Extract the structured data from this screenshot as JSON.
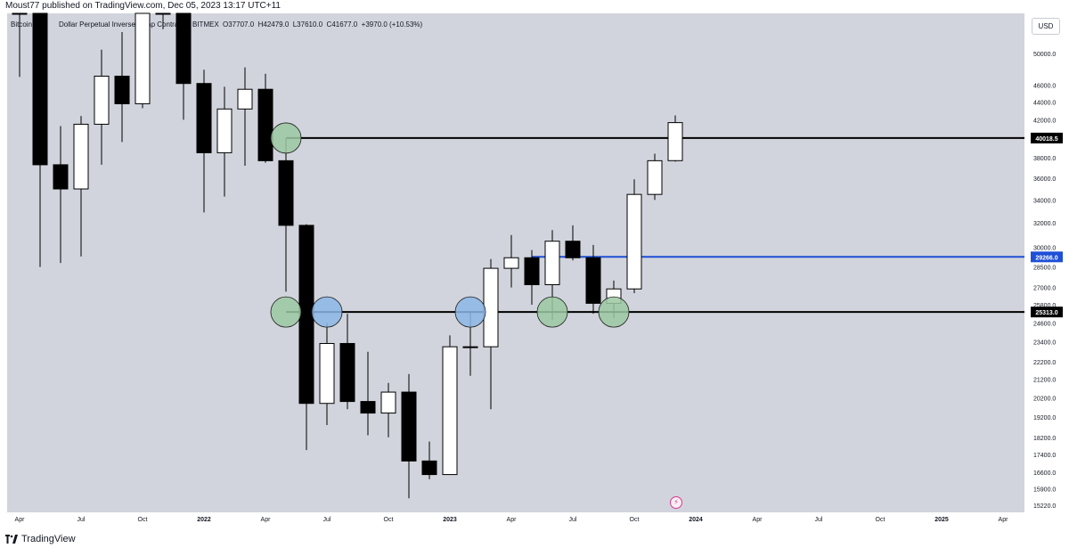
{
  "header": {
    "published": "Moust77 published on TradingView.com, Dec 05, 2023 13:17 UTC+11",
    "symbol": "Bitcoin",
    "symbol_rest": "Dollar Perpetual Inverse Swap Contract,",
    "exchange": "BITMEX",
    "ohlc": "O37707.0  H42479.0  L37610.0  C41677.0  +3970.0 (+10.53%)"
  },
  "footer": {
    "brand": "TradingView",
    "brand_icon": "tradingview-logo-icon",
    "event_icon": "lightning-icon"
  },
  "colors": {
    "plot_bg": "#d1d4dc",
    "candle_up": "#ffffff",
    "candle_down": "#000000",
    "wick": "#000000",
    "level_black": "#000000",
    "level_blue": "#1e4fd6",
    "circle_green": "#9bc8a2",
    "circle_blue": "#8cb6e6"
  },
  "chart_data": {
    "type": "candlestick",
    "interval": "monthly",
    "currency_button": "USD",
    "y_scale": "log",
    "y_ticks": [
      15220.0,
      15900.0,
      16600.0,
      17400.0,
      18200.0,
      19200.0,
      20200.0,
      21200.0,
      22200.0,
      23400.0,
      24600.0,
      25800.0,
      27000.0,
      28500.0,
      30000.0,
      32000.0,
      34000.0,
      36000.0,
      38000.0,
      40000.0,
      42000.0,
      44000.0,
      46000.0,
      50000.0
    ],
    "x_ticks": [
      {
        "date": "2021-04",
        "label": "Apr",
        "bold": false
      },
      {
        "date": "2021-07",
        "label": "Jul",
        "bold": false
      },
      {
        "date": "2021-10",
        "label": "Oct",
        "bold": false
      },
      {
        "date": "2022-01",
        "label": "2022",
        "bold": true
      },
      {
        "date": "2022-04",
        "label": "Apr",
        "bold": false
      },
      {
        "date": "2022-07",
        "label": "Jul",
        "bold": false
      },
      {
        "date": "2022-10",
        "label": "Oct",
        "bold": false
      },
      {
        "date": "2023-01",
        "label": "2023",
        "bold": true
      },
      {
        "date": "2023-04",
        "label": "Apr",
        "bold": false
      },
      {
        "date": "2023-07",
        "label": "Jul",
        "bold": false
      },
      {
        "date": "2023-10",
        "label": "Oct",
        "bold": false
      },
      {
        "date": "2024-01",
        "label": "2024",
        "bold": true
      },
      {
        "date": "2024-04",
        "label": "Apr",
        "bold": false
      },
      {
        "date": "2024-07",
        "label": "Jul",
        "bold": false
      },
      {
        "date": "2024-10",
        "label": "Oct",
        "bold": false
      },
      {
        "date": "2025-01",
        "label": "2025",
        "bold": true
      },
      {
        "date": "2025-04",
        "label": "Apr",
        "bold": false
      }
    ],
    "candles": [
      {
        "date": "2021-04",
        "open": 58800,
        "high": 64800,
        "low": 47000,
        "close": 57700
      },
      {
        "date": "2021-05",
        "open": 57700,
        "high": 59500,
        "low": 28500,
        "close": 37300
      },
      {
        "date": "2021-06",
        "open": 37300,
        "high": 41300,
        "low": 28800,
        "close": 35000
      },
      {
        "date": "2021-07",
        "open": 35000,
        "high": 42400,
        "low": 29300,
        "close": 41500
      },
      {
        "date": "2021-08",
        "open": 41500,
        "high": 50500,
        "low": 37300,
        "close": 47100
      },
      {
        "date": "2021-09",
        "open": 47100,
        "high": 52900,
        "low": 39600,
        "close": 43800
      },
      {
        "date": "2021-10",
        "open": 43800,
        "high": 67000,
        "low": 43300,
        "close": 61300
      },
      {
        "date": "2021-11",
        "open": 61300,
        "high": 69000,
        "low": 53300,
        "close": 57000
      },
      {
        "date": "2021-12",
        "open": 57000,
        "high": 59100,
        "low": 42000,
        "close": 46200
      },
      {
        "date": "2022-01",
        "open": 46200,
        "high": 47900,
        "low": 32900,
        "close": 38500
      },
      {
        "date": "2022-02",
        "open": 38500,
        "high": 45800,
        "low": 34300,
        "close": 43200
      },
      {
        "date": "2022-03",
        "open": 43200,
        "high": 48200,
        "low": 37200,
        "close": 45500
      },
      {
        "date": "2022-04",
        "open": 45500,
        "high": 47400,
        "low": 37500,
        "close": 37700
      },
      {
        "date": "2022-05",
        "open": 37700,
        "high": 40000,
        "low": 26700,
        "close": 31800
      },
      {
        "date": "2022-06",
        "open": 31800,
        "high": 31900,
        "low": 17600,
        "close": 19900
      },
      {
        "date": "2022-07",
        "open": 19900,
        "high": 24600,
        "low": 18800,
        "close": 23300
      },
      {
        "date": "2022-08",
        "open": 23300,
        "high": 25200,
        "low": 19600,
        "close": 20000
      },
      {
        "date": "2022-09",
        "open": 20000,
        "high": 22800,
        "low": 18300,
        "close": 19400
      },
      {
        "date": "2022-10",
        "open": 19400,
        "high": 21000,
        "low": 18200,
        "close": 20500
      },
      {
        "date": "2022-11",
        "open": 20500,
        "high": 21500,
        "low": 15500,
        "close": 17100
      },
      {
        "date": "2022-12",
        "open": 17100,
        "high": 18000,
        "low": 16300,
        "close": 16500
      },
      {
        "date": "2023-01",
        "open": 16500,
        "high": 23800,
        "low": 16500,
        "close": 23100
      },
      {
        "date": "2023-02",
        "open": 23100,
        "high": 25300,
        "low": 21400,
        "close": 23100
      },
      {
        "date": "2023-03",
        "open": 23100,
        "high": 29100,
        "low": 19600,
        "close": 28400
      },
      {
        "date": "2023-04",
        "open": 28400,
        "high": 31000,
        "low": 27000,
        "close": 29200
      },
      {
        "date": "2023-05",
        "open": 29200,
        "high": 29800,
        "low": 25800,
        "close": 27200
      },
      {
        "date": "2023-06",
        "open": 27200,
        "high": 31400,
        "low": 24800,
        "close": 30500
      },
      {
        "date": "2023-07",
        "open": 30500,
        "high": 31800,
        "low": 29000,
        "close": 29200
      },
      {
        "date": "2023-08",
        "open": 29200,
        "high": 30200,
        "low": 25200,
        "close": 25900
      },
      {
        "date": "2023-09",
        "open": 25900,
        "high": 27500,
        "low": 24900,
        "close": 26900
      },
      {
        "date": "2023-10",
        "open": 26900,
        "high": 35900,
        "low": 26600,
        "close": 34500
      },
      {
        "date": "2023-11",
        "open": 34500,
        "high": 38400,
        "low": 34000,
        "close": 37700
      },
      {
        "date": "2023-12",
        "open": 37707.0,
        "high": 42479.0,
        "low": 37610.0,
        "close": 41677.0
      }
    ],
    "levels": [
      {
        "price": 40018.5,
        "label": "40018.5",
        "start": "2022-05",
        "color": "#000000"
      },
      {
        "price": 29266.0,
        "label": "29266.0",
        "start": "2023-05",
        "color": "#1e4fd6"
      },
      {
        "price": 25313.0,
        "label": "25313.0",
        "start": "2022-05",
        "color": "#000000"
      }
    ],
    "markers": [
      {
        "date": "2022-05",
        "price": 40018.5,
        "color": "#9bc8a2"
      },
      {
        "date": "2022-05",
        "price": 25313.0,
        "color": "#9bc8a2"
      },
      {
        "date": "2022-07",
        "price": 25313.0,
        "color": "#8cb6e6"
      },
      {
        "date": "2023-02",
        "price": 25313.0,
        "color": "#8cb6e6"
      },
      {
        "date": "2023-06",
        "price": 25313.0,
        "color": "#9bc8a2"
      },
      {
        "date": "2023-09",
        "price": 25313.0,
        "color": "#9bc8a2"
      }
    ]
  }
}
